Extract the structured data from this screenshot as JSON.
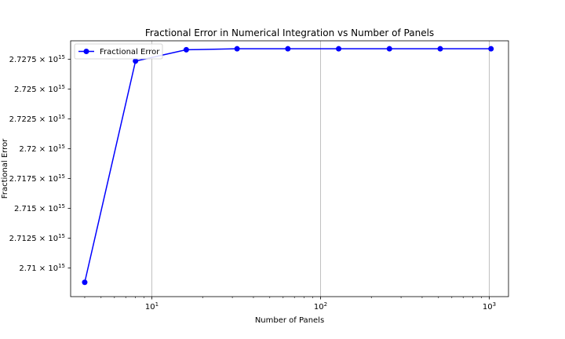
{
  "chart_data": {
    "type": "line",
    "title": "Fractional Error in Numerical Integration vs Number of Panels",
    "xlabel": "Number of Panels",
    "ylabel": "Fractional Error",
    "xscale": "log",
    "xlim": [
      3.3,
      1300
    ],
    "ylim": [
      2707600000000000.0,
      2729050000000000.0
    ],
    "x_ticks": [
      {
        "value": 10,
        "base": "10",
        "exp": "1"
      },
      {
        "value": 100,
        "base": "10",
        "exp": "2"
      },
      {
        "value": 1000,
        "base": "10",
        "exp": "3"
      }
    ],
    "y_ticks": [
      {
        "value": 2710000000000000.0,
        "mantissa": "2.71",
        "base": "10",
        "exp": "15"
      },
      {
        "value": 2712500000000000.0,
        "mantissa": "2.7125",
        "base": "10",
        "exp": "15"
      },
      {
        "value": 2715000000000000.0,
        "mantissa": "2.715",
        "base": "10",
        "exp": "15"
      },
      {
        "value": 2717500000000000.0,
        "mantissa": "2.7175",
        "base": "10",
        "exp": "15"
      },
      {
        "value": 2720000000000000.0,
        "mantissa": "2.72",
        "base": "10",
        "exp": "15"
      },
      {
        "value": 2722500000000000.0,
        "mantissa": "2.7225",
        "base": "10",
        "exp": "15"
      },
      {
        "value": 2725000000000000.0,
        "mantissa": "2.725",
        "base": "10",
        "exp": "15"
      },
      {
        "value": 2727500000000000.0,
        "mantissa": "2.7275",
        "base": "10",
        "exp": "15"
      }
    ],
    "grid": "x-major",
    "legend_position": "top-left",
    "series": [
      {
        "name": "Fractional Error",
        "color": "#0000ff",
        "marker": "circle",
        "x": [
          4,
          8,
          16,
          32,
          64,
          128,
          256,
          512,
          1024
        ],
        "y": [
          2708800000000000.0,
          2727350000000000.0,
          2728300000000000.0,
          2728380000000000.0,
          2728380000000000.0,
          2728380000000000.0,
          2728380000000000.0,
          2728380000000000.0,
          2728380000000000.0
        ]
      }
    ]
  }
}
